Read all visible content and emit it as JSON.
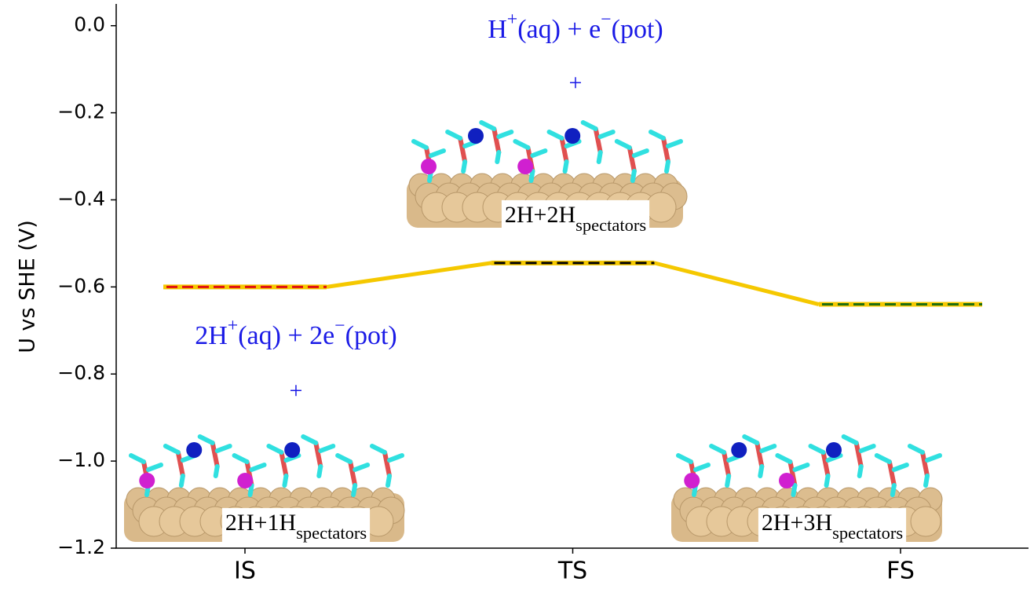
{
  "chart_data": {
    "type": "levels",
    "ylabel": "U vs SHE (V)",
    "categories": [
      "IS",
      "TS",
      "FS"
    ],
    "series": [
      {
        "color": "#f5c800",
        "level_colors": [
          "#e01010",
          "#000000",
          "#1f6e10"
        ],
        "values": [
          -0.6,
          -0.545,
          -0.64
        ]
      }
    ],
    "ylim": [
      -1.2,
      0.05
    ],
    "yticks": [
      {
        "value": 0.0,
        "label": "0.0"
      },
      {
        "value": -0.2,
        "label": "−0.2"
      },
      {
        "value": -0.4,
        "label": "−0.4"
      },
      {
        "value": -0.6,
        "label": "−0.6"
      },
      {
        "value": -0.8,
        "label": "−0.8"
      },
      {
        "value": -1.0,
        "label": "−1.0"
      },
      {
        "value": -1.2,
        "label": "−1.2"
      }
    ],
    "annotation_color": "#1a1ae6",
    "annotations": [
      {
        "parts": [
          {
            "text": "H"
          },
          {
            "text": "+",
            "sup": true
          },
          {
            "text": "(aq) + e"
          },
          {
            "text": "−",
            "sup": true
          },
          {
            "text": "(pot)"
          }
        ]
      },
      {
        "parts": [
          {
            "text": "+"
          }
        ]
      },
      {
        "parts": [
          {
            "text": "2H"
          },
          {
            "text": "+",
            "sup": true
          },
          {
            "text": "(aq) + 2e"
          },
          {
            "text": "−",
            "sup": true
          },
          {
            "text": "(pot)"
          }
        ]
      },
      {
        "parts": [
          {
            "text": "+"
          }
        ]
      }
    ],
    "structure_labels": [
      {
        "parts": [
          {
            "text": "2H+1H"
          },
          {
            "text": "spectators",
            "sub": true
          }
        ]
      },
      {
        "parts": [
          {
            "text": "2H+2H"
          },
          {
            "text": "spectators",
            "sub": true
          }
        ]
      },
      {
        "parts": [
          {
            "text": "2H+3H"
          },
          {
            "text": "spectators",
            "sub": true
          }
        ]
      }
    ]
  }
}
